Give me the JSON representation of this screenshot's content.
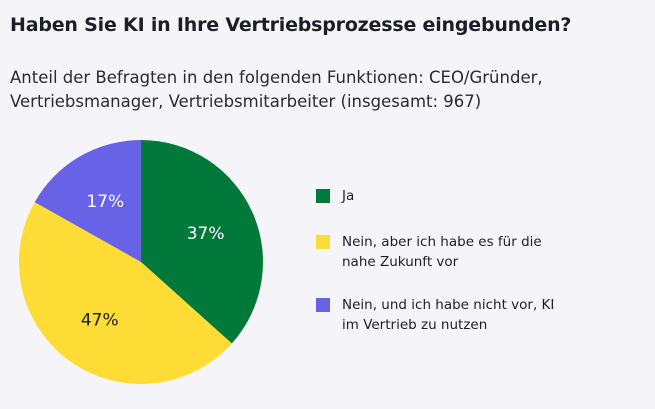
{
  "chart_data": {
    "type": "pie",
    "title": "Haben Sie KI in Ihre Vertriebsprozesse eingebunden?",
    "subtitle": "Anteil der Befragten in den folgenden Funktionen: CEO/Gründer, Vertriebsmanager, Vertriebsmitarbeiter (insgesamt: 967)",
    "legend_position": "right",
    "slices": [
      {
        "label": "Ja",
        "value": 37,
        "display": "37%",
        "color": "#00793a",
        "label_color": "#ffffff"
      },
      {
        "label": "Nein, aber ich habe es für die nahe Zukunft vor",
        "value": 47,
        "display": "47%",
        "color": "#fddc36",
        "label_color": "#1d1d28"
      },
      {
        "label": "Nein, und ich habe nicht vor, KI im Vertrieb zu nutzen",
        "value": 17,
        "display": "17%",
        "color": "#6762e6",
        "label_color": "#ffffff"
      }
    ]
  }
}
